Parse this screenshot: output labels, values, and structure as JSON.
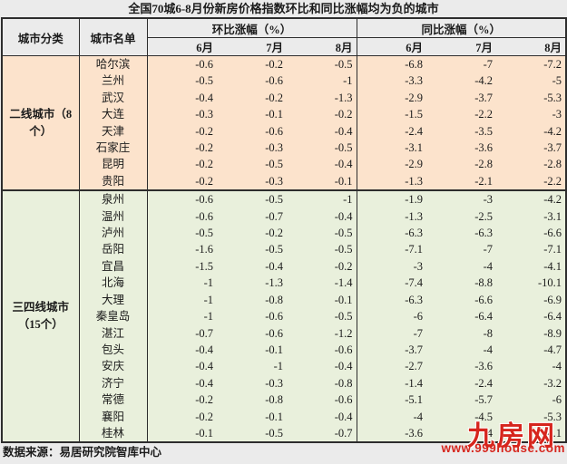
{
  "title": "全国70城6-8月份新房价格指数环比和同比涨幅均为负的城市",
  "header": {
    "col_category": "城市分类",
    "col_city": "城市名单",
    "group_mom": "环比涨幅（%）",
    "group_yoy": "同比涨幅（%）",
    "months": [
      "6月",
      "7月",
      "8月"
    ]
  },
  "groups": [
    {
      "category_lines": [
        "二线城市（8",
        "个）"
      ],
      "color": "#fce3cc",
      "rows": [
        {
          "city": "哈尔滨",
          "mom": [
            "-0.6",
            "-0.2",
            "-0.5"
          ],
          "yoy": [
            "-6.8",
            "-7",
            "-7.2"
          ]
        },
        {
          "city": "兰州",
          "mom": [
            "-0.5",
            "-0.6",
            "-1"
          ],
          "yoy": [
            "-3.3",
            "-4.2",
            "-5"
          ]
        },
        {
          "city": "武汉",
          "mom": [
            "-0.4",
            "-0.2",
            "-1.3"
          ],
          "yoy": [
            "-2.9",
            "-3.7",
            "-5.3"
          ]
        },
        {
          "city": "大连",
          "mom": [
            "-0.3",
            "-0.1",
            "-0.2"
          ],
          "yoy": [
            "-1.5",
            "-2.2",
            "-3"
          ]
        },
        {
          "city": "天津",
          "mom": [
            "-0.2",
            "-0.6",
            "-0.4"
          ],
          "yoy": [
            "-2.4",
            "-3.5",
            "-4.2"
          ]
        },
        {
          "city": "石家庄",
          "mom": [
            "-0.2",
            "-0.3",
            "-0.5"
          ],
          "yoy": [
            "-3.1",
            "-3.6",
            "-3.7"
          ]
        },
        {
          "city": "昆明",
          "mom": [
            "-0.2",
            "-0.5",
            "-0.4"
          ],
          "yoy": [
            "-2.9",
            "-2.8",
            "-2.8"
          ]
        },
        {
          "city": "贵阳",
          "mom": [
            "-0.2",
            "-0.3",
            "-0.1"
          ],
          "yoy": [
            "-1.3",
            "-2.1",
            "-2.2"
          ]
        }
      ]
    },
    {
      "category_lines": [
        "三四线城市",
        "（15个）"
      ],
      "color": "#e9f0dc",
      "rows": [
        {
          "city": "泉州",
          "mom": [
            "-0.6",
            "-0.5",
            "-1"
          ],
          "yoy": [
            "-1.9",
            "-3",
            "-4.2"
          ]
        },
        {
          "city": "温州",
          "mom": [
            "-0.6",
            "-0.7",
            "-0.4"
          ],
          "yoy": [
            "-1.3",
            "-2.5",
            "-3.1"
          ]
        },
        {
          "city": "泸州",
          "mom": [
            "-0.5",
            "-0.2",
            "-0.5"
          ],
          "yoy": [
            "-6.3",
            "-6.3",
            "-6.6"
          ]
        },
        {
          "city": "岳阳",
          "mom": [
            "-1.6",
            "-0.5",
            "-0.5"
          ],
          "yoy": [
            "-7.1",
            "-7",
            "-7.1"
          ]
        },
        {
          "city": "宜昌",
          "mom": [
            "-1.5",
            "-0.4",
            "-0.2"
          ],
          "yoy": [
            "-3",
            "-4",
            "-4.1"
          ]
        },
        {
          "city": "北海",
          "mom": [
            "-1",
            "-1.3",
            "-1.4"
          ],
          "yoy": [
            "-7.4",
            "-8.8",
            "-10.1"
          ]
        },
        {
          "city": "大理",
          "mom": [
            "-1",
            "-0.8",
            "-0.1"
          ],
          "yoy": [
            "-6.3",
            "-6.6",
            "-6.9"
          ]
        },
        {
          "city": "秦皇岛",
          "mom": [
            "-1",
            "-0.6",
            "-0.5"
          ],
          "yoy": [
            "-6",
            "-6.4",
            "-6.4"
          ]
        },
        {
          "city": "湛江",
          "mom": [
            "-0.7",
            "-0.6",
            "-1.2"
          ],
          "yoy": [
            "-7",
            "-8",
            "-8.9"
          ]
        },
        {
          "city": "包头",
          "mom": [
            "-0.4",
            "-0.1",
            "-0.6"
          ],
          "yoy": [
            "-3.7",
            "-4",
            "-4.7"
          ]
        },
        {
          "city": "安庆",
          "mom": [
            "-0.4",
            "-1",
            "-0.4"
          ],
          "yoy": [
            "-2.7",
            "-3.6",
            "-4"
          ]
        },
        {
          "city": "济宁",
          "mom": [
            "-0.4",
            "-0.3",
            "-0.8"
          ],
          "yoy": [
            "-1.4",
            "-2.4",
            "-3.2"
          ]
        },
        {
          "city": "常德",
          "mom": [
            "-0.2",
            "-0.8",
            "-0.6"
          ],
          "yoy": [
            "-5.1",
            "-5.7",
            "-6"
          ]
        },
        {
          "city": "襄阳",
          "mom": [
            "-0.2",
            "-0.1",
            "-0.4"
          ],
          "yoy": [
            "-4",
            "-4.5",
            "-5.3"
          ]
        },
        {
          "city": "桂林",
          "mom": [
            "-0.1",
            "-0.5",
            "-0.7"
          ],
          "yoy": [
            "-3.6",
            "-4",
            "-4.1"
          ]
        }
      ]
    }
  ],
  "footer": {
    "source": "数据来源：易居研究院智库中心"
  },
  "watermark": {
    "brand": "九房网",
    "url": "www.999house.com",
    "color": "#d6251d"
  },
  "chart_data": {
    "type": "table",
    "title": "全国70城6-8月份新房价格指数环比和同比涨幅均为负的城市",
    "columns": [
      "城市分类",
      "城市名单",
      "环比涨幅(%) 6月",
      "环比涨幅(%) 7月",
      "环比涨幅(%) 8月",
      "同比涨幅(%) 6月",
      "同比涨幅(%) 7月",
      "同比涨幅(%) 8月"
    ],
    "rows": [
      [
        "二线城市（8个）",
        "哈尔滨",
        -0.6,
        -0.2,
        -0.5,
        -6.8,
        -7,
        -7.2
      ],
      [
        "二线城市（8个）",
        "兰州",
        -0.5,
        -0.6,
        -1,
        -3.3,
        -4.2,
        -5
      ],
      [
        "二线城市（8个）",
        "武汉",
        -0.4,
        -0.2,
        -1.3,
        -2.9,
        -3.7,
        -5.3
      ],
      [
        "二线城市（8个）",
        "大连",
        -0.3,
        -0.1,
        -0.2,
        -1.5,
        -2.2,
        -3
      ],
      [
        "二线城市（8个）",
        "天津",
        -0.2,
        -0.6,
        -0.4,
        -2.4,
        -3.5,
        -4.2
      ],
      [
        "二线城市（8个）",
        "石家庄",
        -0.2,
        -0.3,
        -0.5,
        -3.1,
        -3.6,
        -3.7
      ],
      [
        "二线城市（8个）",
        "昆明",
        -0.2,
        -0.5,
        -0.4,
        -2.9,
        -2.8,
        -2.8
      ],
      [
        "二线城市（8个）",
        "贵阳",
        -0.2,
        -0.3,
        -0.1,
        -1.3,
        -2.1,
        -2.2
      ],
      [
        "三四线城市（15个）",
        "泉州",
        -0.6,
        -0.5,
        -1,
        -1.9,
        -3,
        -4.2
      ],
      [
        "三四线城市（15个）",
        "温州",
        -0.6,
        -0.7,
        -0.4,
        -1.3,
        -2.5,
        -3.1
      ],
      [
        "三四线城市（15个）",
        "泸州",
        -0.5,
        -0.2,
        -0.5,
        -6.3,
        -6.3,
        -6.6
      ],
      [
        "三四线城市（15个）",
        "岳阳",
        -1.6,
        -0.5,
        -0.5,
        -7.1,
        -7,
        -7.1
      ],
      [
        "三四线城市（15个）",
        "宜昌",
        -1.5,
        -0.4,
        -0.2,
        -3,
        -4,
        -4.1
      ],
      [
        "三四线城市（15个）",
        "北海",
        -1,
        -1.3,
        -1.4,
        -7.4,
        -8.8,
        -10.1
      ],
      [
        "三四线城市（15个）",
        "大理",
        -1,
        -0.8,
        -0.1,
        -6.3,
        -6.6,
        -6.9
      ],
      [
        "三四线城市（15个）",
        "秦皇岛",
        -1,
        -0.6,
        -0.5,
        -6,
        -6.4,
        -6.4
      ],
      [
        "三四线城市（15个）",
        "湛江",
        -0.7,
        -0.6,
        -1.2,
        -7,
        -8,
        -8.9
      ],
      [
        "三四线城市（15个）",
        "包头",
        -0.4,
        -0.1,
        -0.6,
        -3.7,
        -4,
        -4.7
      ],
      [
        "三四线城市（15个）",
        "安庆",
        -0.4,
        -1,
        -0.4,
        -2.7,
        -3.6,
        -4
      ],
      [
        "三四线城市（15个）",
        "济宁",
        -0.4,
        -0.3,
        -0.8,
        -1.4,
        -2.4,
        -3.2
      ],
      [
        "三四线城市（15个）",
        "常德",
        -0.2,
        -0.8,
        -0.6,
        -5.1,
        -5.7,
        -6
      ],
      [
        "三四线城市（15个）",
        "襄阳",
        -0.2,
        -0.1,
        -0.4,
        -4,
        -4.5,
        -5.3
      ],
      [
        "三四线城市（15个）",
        "桂林",
        -0.1,
        -0.5,
        -0.7,
        -3.6,
        -4,
        -4.1
      ]
    ],
    "source_note": "数据来源：易居研究院智库中心"
  }
}
